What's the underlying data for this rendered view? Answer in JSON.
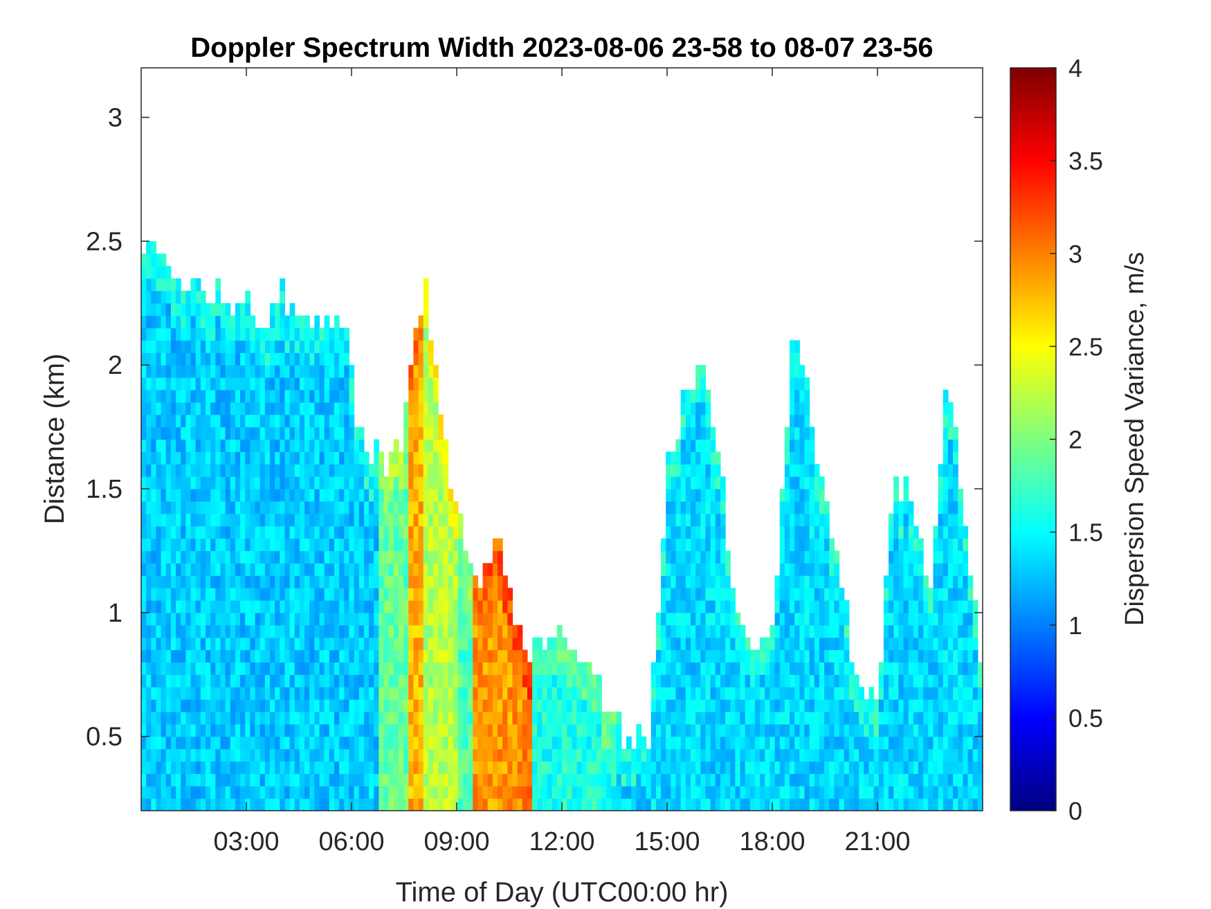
{
  "chart_data": {
    "type": "heatmap",
    "title": "Doppler Spectrum Width 2023-08-06 23-58 to 08-07 23-56",
    "xlabel": "Time of Day (UTC00:00 hr)",
    "ylabel": "Distance (km)",
    "colorbar_label": "Dispersion Speed Variance, m/s",
    "colormap": "jet",
    "x_unit": "hours",
    "xlim": [
      0,
      24
    ],
    "ylim": [
      0.2,
      3.2
    ],
    "clim": [
      0,
      4
    ],
    "x_ticks": [
      {
        "value": 3,
        "label": "03:00"
      },
      {
        "value": 6,
        "label": "06:00"
      },
      {
        "value": 9,
        "label": "09:00"
      },
      {
        "value": 12,
        "label": "12:00"
      },
      {
        "value": 15,
        "label": "15:00"
      },
      {
        "value": 18,
        "label": "18:00"
      },
      {
        "value": 21,
        "label": "21:00"
      }
    ],
    "y_ticks": [
      {
        "value": 0.5,
        "label": "0.5"
      },
      {
        "value": 1,
        "label": "1"
      },
      {
        "value": 1.5,
        "label": "1.5"
      },
      {
        "value": 2,
        "label": "2"
      },
      {
        "value": 2.5,
        "label": "2.5"
      },
      {
        "value": 3,
        "label": "3"
      }
    ],
    "colorbar_ticks": [
      {
        "value": 0,
        "label": "0"
      },
      {
        "value": 0.5,
        "label": "0.5"
      },
      {
        "value": 1,
        "label": "1"
      },
      {
        "value": 1.5,
        "label": "1.5"
      },
      {
        "value": 2,
        "label": "2"
      },
      {
        "value": 2.5,
        "label": "2.5"
      },
      {
        "value": 3,
        "label": "3"
      },
      {
        "value": 3.5,
        "label": "3.5"
      },
      {
        "value": 4,
        "label": "4"
      }
    ],
    "echo_top_profile": {
      "hours": [
        0,
        0.5,
        1,
        2,
        3,
        3.5,
        4,
        4.5,
        5,
        5.5,
        5.9,
        6.1,
        6.5,
        7,
        7.3,
        7.5,
        7.8,
        8.1,
        8.5,
        9,
        9.5,
        10,
        10.2,
        10.5,
        11,
        11.5,
        12,
        12.5,
        13,
        13.5,
        14,
        14.5,
        15,
        15.5,
        16,
        16.5,
        17,
        17.5,
        18,
        18.3,
        18.6,
        19,
        19.5,
        20,
        20.5,
        21,
        21.5,
        22,
        22.5,
        23,
        24
      ],
      "top_km": [
        2.45,
        2.48,
        2.32,
        2.3,
        2.25,
        2.1,
        2.3,
        2.2,
        2.2,
        2.2,
        2.2,
        1.75,
        1.65,
        1.6,
        1.65,
        1.75,
        2.1,
        2.3,
        1.9,
        1.4,
        1.1,
        1.2,
        1.35,
        1.05,
        0.85,
        0.9,
        0.88,
        0.85,
        0.7,
        0.55,
        0.5,
        0.5,
        1.55,
        1.9,
        2.05,
        1.6,
        0.95,
        0.85,
        0.95,
        1.5,
        2.2,
        1.9,
        1.45,
        1.1,
        0.65,
        0.65,
        1.55,
        1.5,
        1.1,
        2.0,
        0.75
      ]
    },
    "value_bands": [
      {
        "from_hour": 0,
        "to_hour": 6.8,
        "typical_value": 1.3
      },
      {
        "from_hour": 6.8,
        "to_hour": 7.6,
        "typical_value": 1.9
      },
      {
        "from_hour": 7.6,
        "to_hour": 8.1,
        "typical_value": 2.8
      },
      {
        "from_hour": 8.1,
        "to_hour": 9.0,
        "typical_value": 2.2
      },
      {
        "from_hour": 9.0,
        "to_hour": 9.5,
        "typical_value": 1.8
      },
      {
        "from_hour": 9.5,
        "to_hour": 10.8,
        "typical_value": 2.9
      },
      {
        "from_hour": 10.8,
        "to_hour": 11.1,
        "typical_value": 3.0
      },
      {
        "from_hour": 11.1,
        "to_hour": 13.5,
        "typical_value": 1.6
      },
      {
        "from_hour": 13.5,
        "to_hour": 24,
        "typical_value": 1.35
      }
    ]
  }
}
